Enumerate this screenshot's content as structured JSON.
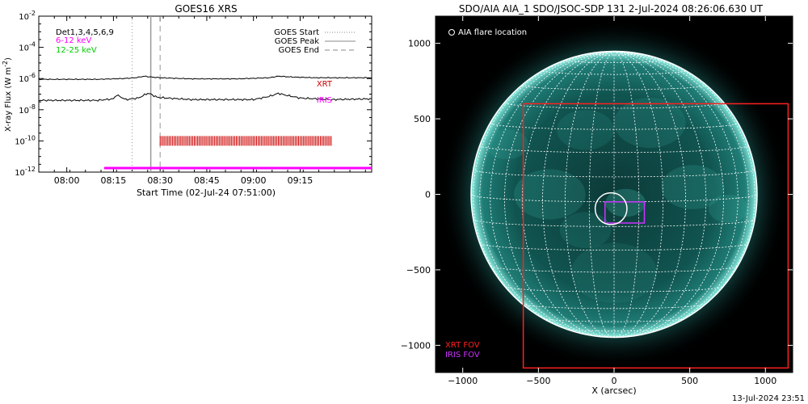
{
  "stamp": "13-Jul-2024 23:51",
  "chart_data": [
    {
      "type": "line",
      "title": "GOES16 XRS",
      "xlabel": "Start Time (02-Jul-24 07:51:00)",
      "ylabel": "X-ray Flux (W m",
      "ylabel_exp": "-2",
      "ylabel_close": ")",
      "yscale": "log",
      "ylim": [
        1e-12,
        0.01
      ],
      "xlim": [
        "07:51",
        "09:38"
      ],
      "x_ticks": [
        "08:00",
        "08:15",
        "08:30",
        "08:45",
        "09:00",
        "09:15"
      ],
      "y_ticks": [
        {
          "base": "10",
          "exp": "-2",
          "value": -2
        },
        {
          "base": "10",
          "exp": "-4",
          "value": -4
        },
        {
          "base": "10",
          "exp": "-6",
          "value": -6
        },
        {
          "base": "10",
          "exp": "-8",
          "value": -8
        },
        {
          "base": "10",
          "exp": "-10",
          "value": -10
        },
        {
          "base": "10",
          "exp": "-12",
          "value": -12
        }
      ],
      "channel_legend": [
        {
          "text": "Det1,3,4,5,6,9",
          "color": "#000000"
        },
        {
          "text": "6-12 keV",
          "color": "#ff00ff"
        },
        {
          "text": "12-25 keV",
          "color": "#00cc00"
        }
      ],
      "event_legend": [
        {
          "text": "GOES Start",
          "style": "dotted",
          "color": "#888888"
        },
        {
          "text": "GOES Peak",
          "style": "solid",
          "color": "#888888"
        },
        {
          "text": "GOES End",
          "style": "dashed",
          "color": "#888888"
        }
      ],
      "events": {
        "start": "08:21",
        "peak": "08:27",
        "end": "08:30"
      },
      "series": [
        {
          "color": "#000000",
          "x": [
            "07:51",
            "08:10",
            "08:18",
            "08:22",
            "08:25",
            "08:27",
            "08:30",
            "08:40",
            "08:55",
            "09:05",
            "09:08",
            "09:12",
            "09:20",
            "09:38"
          ],
          "log10_y": [
            -6.05,
            -6.05,
            -6.0,
            -5.95,
            -5.85,
            -5.9,
            -5.95,
            -6.02,
            -6.02,
            -5.95,
            -5.85,
            -5.9,
            -5.95,
            -5.95
          ]
        },
        {
          "color": "#000000",
          "x": [
            "07:51",
            "08:10",
            "08:15",
            "08:16",
            "08:19",
            "08:23",
            "08:26",
            "08:27",
            "08:29",
            "08:32",
            "08:40",
            "09:00",
            "09:05",
            "09:08",
            "09:10",
            "09:15",
            "09:25",
            "09:38"
          ],
          "log10_y": [
            -7.4,
            -7.4,
            -7.3,
            -7.05,
            -7.35,
            -7.25,
            -6.95,
            -7.0,
            -7.2,
            -7.25,
            -7.35,
            -7.35,
            -7.15,
            -6.95,
            -7.05,
            -7.25,
            -7.35,
            -7.3
          ]
        }
      ],
      "bands": [
        {
          "label": "XRT",
          "color": "#cc0000",
          "x_start": "08:30",
          "x_end": "09:25",
          "log10_y": -10
        },
        {
          "label": "IRIS",
          "color": "#ff00ff",
          "x_start": "08:12",
          "x_end": "09:38",
          "log10_y": -12
        }
      ]
    },
    {
      "type": "scatter",
      "title": "SDO/AIA AIA_1 SDO/JSOC-SDP 131  2-Jul-2024 08:26:06.630 UT",
      "xlabel": "X (arcsec)",
      "ylabel": "",
      "xlim": [
        -1180,
        1180
      ],
      "ylim": [
        -1180,
        1180
      ],
      "x_ticks": [
        -1000,
        -500,
        0,
        500,
        1000
      ],
      "y_ticks": [
        1000,
        500,
        0,
        -500,
        -1000
      ],
      "x_tick_labels": [
        "−1000",
        "−500",
        "0",
        "500",
        "1000"
      ],
      "y_tick_labels": [
        "1000",
        "500",
        "0",
        "−500",
        "−1000"
      ],
      "flare_legend": "AIA flare location",
      "disk_radius_arcsec": 945,
      "flare_location": {
        "x": -20,
        "y": -95,
        "radius": 105
      },
      "fov_boxes": [
        {
          "label": "XRT FOV",
          "color": "#ff2020",
          "x0": -600,
          "y0": -1150,
          "x1": 1150,
          "y1": 600
        },
        {
          "label": "IRIS FOV",
          "color": "#cc33ff",
          "x0": -60,
          "y0": -190,
          "x1": 200,
          "y1": -50
        }
      ]
    }
  ]
}
